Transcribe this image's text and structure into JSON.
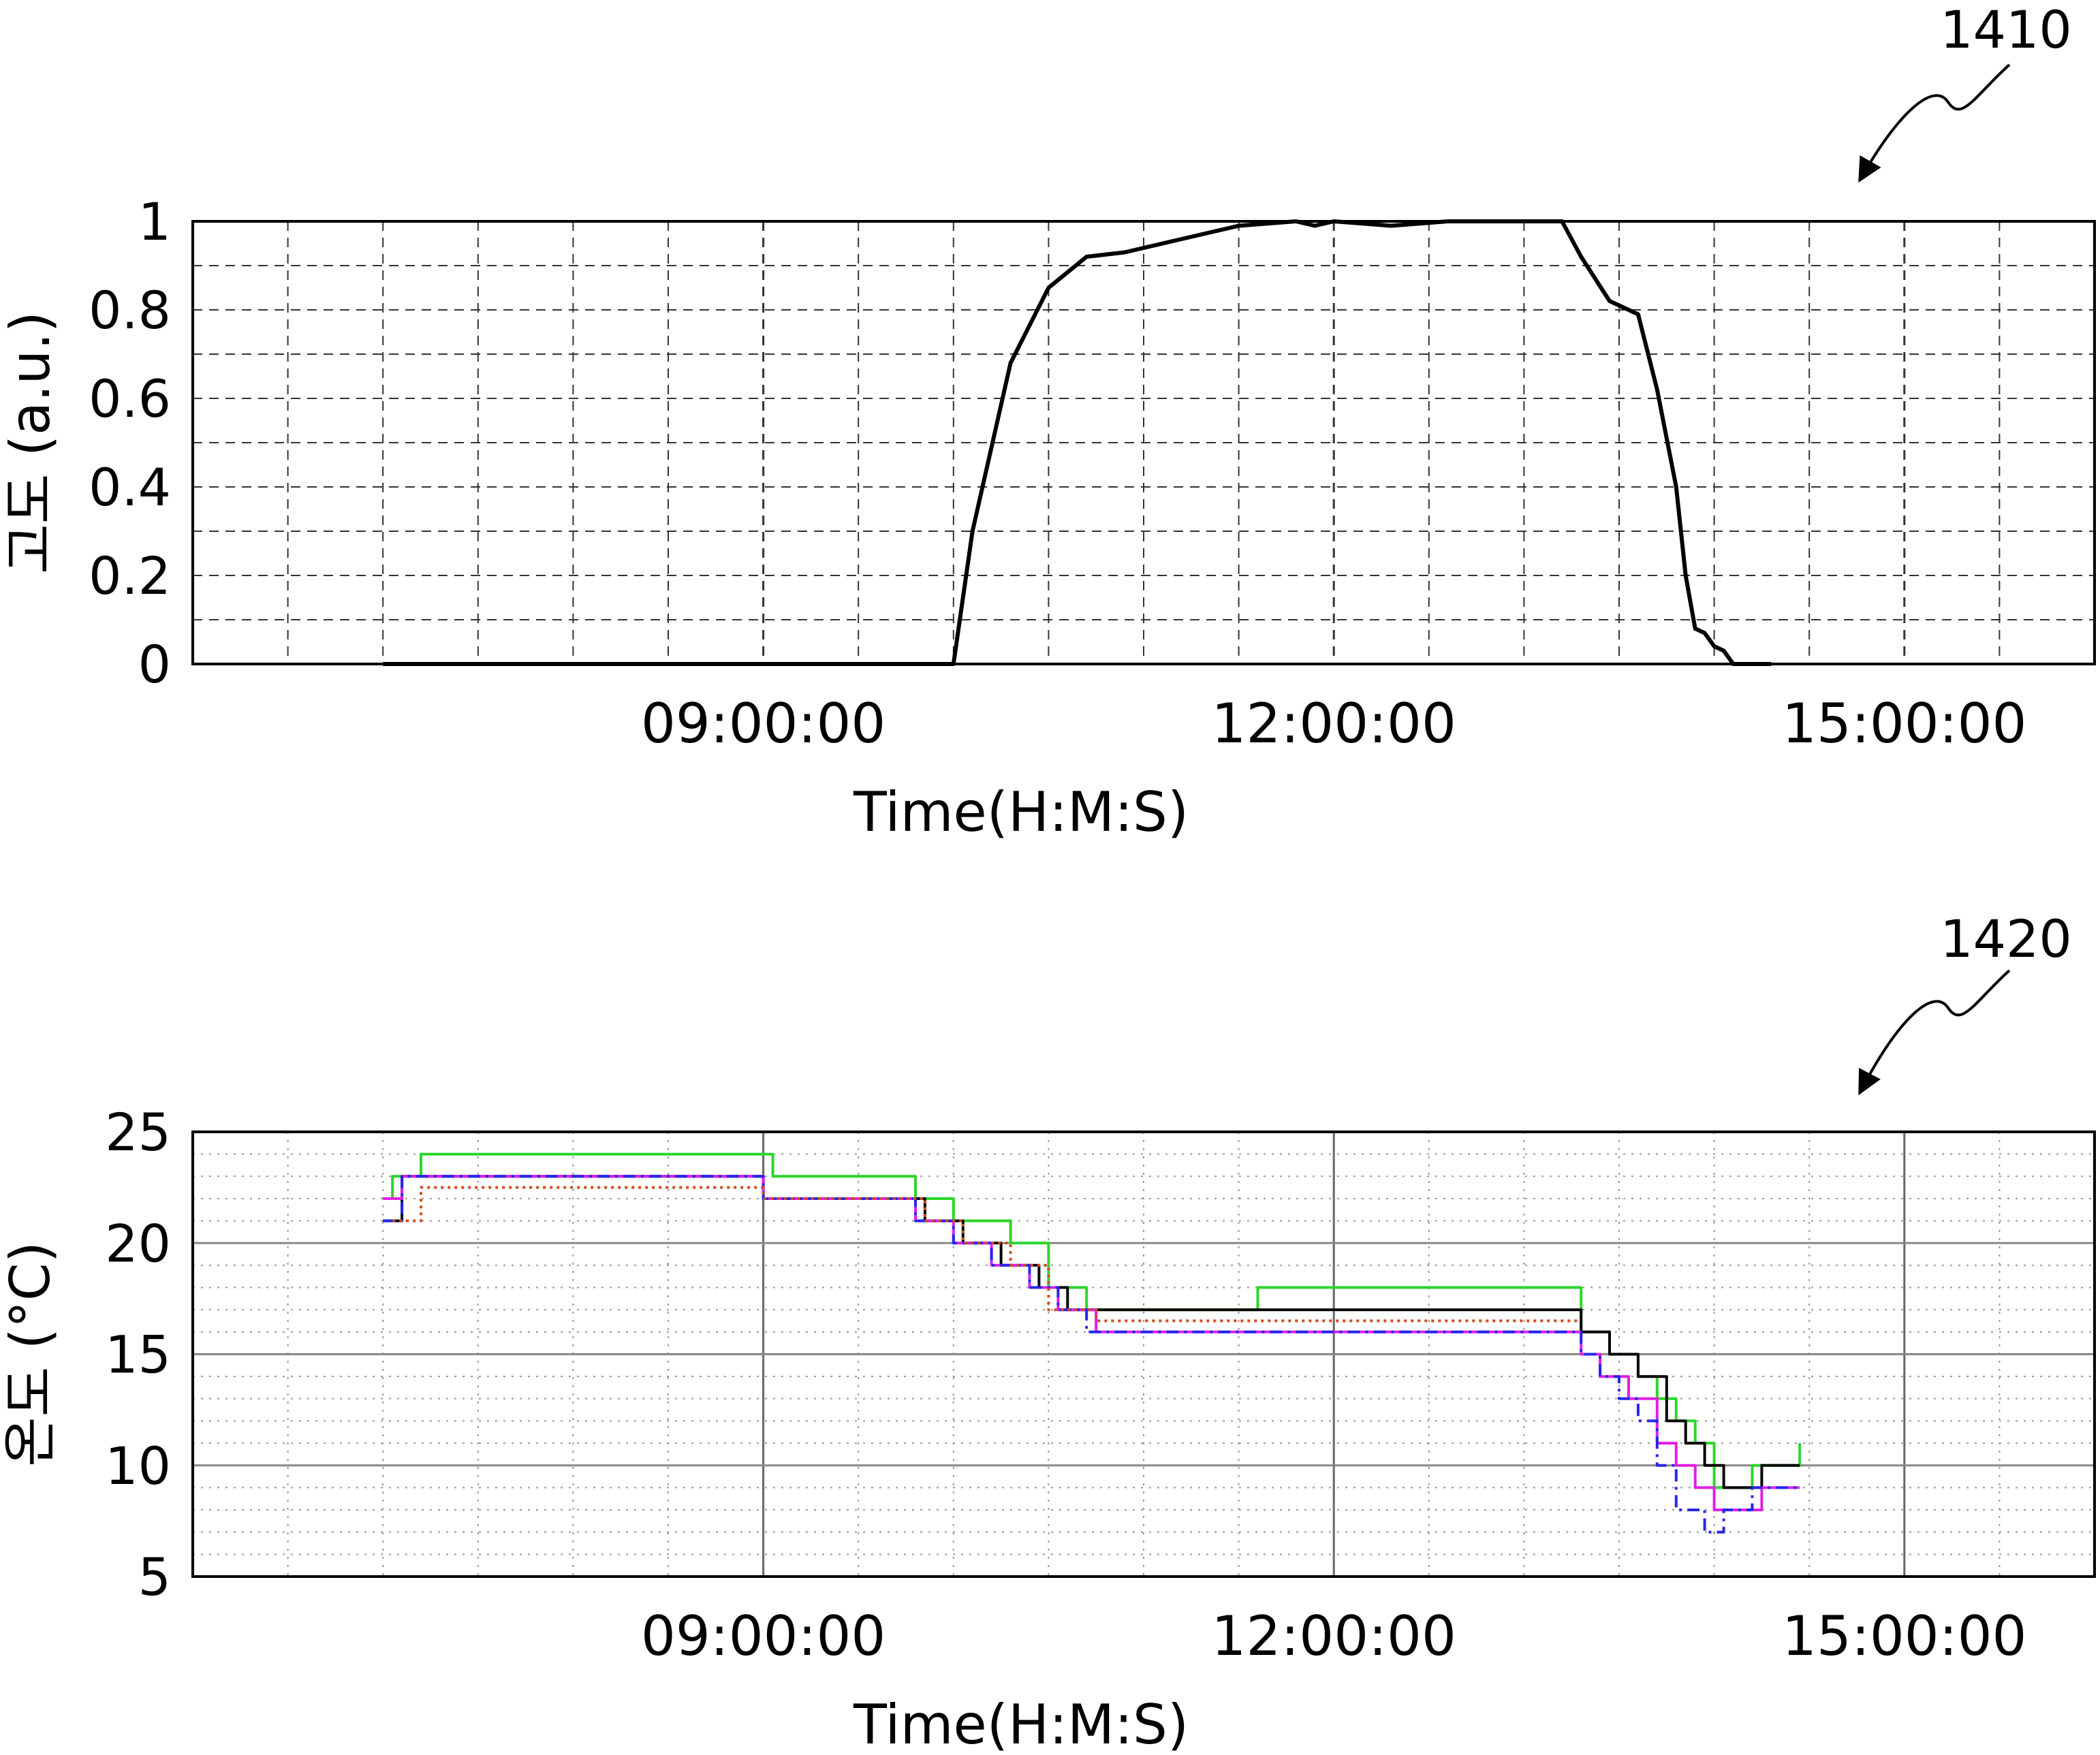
{
  "chart_data": [
    {
      "type": "line",
      "ref": "1410",
      "title": "",
      "xlabel": "Time(H:M:S)",
      "ylabel": "고도 (a.u.)",
      "xlim": [
        6.0,
        16.0
      ],
      "ylim": [
        0,
        1
      ],
      "yticks": [
        0,
        0.2,
        0.4,
        0.6,
        0.8,
        1
      ],
      "ytick_labels": [
        "0",
        "0.2",
        "0.4",
        "0.6",
        "0.8",
        "1"
      ],
      "xticks": [
        9,
        12,
        15
      ],
      "xtick_labels": [
        "09:00:00",
        "12:00:00",
        "15:00:00"
      ],
      "grid": "dashed",
      "series": [
        {
          "color": "#000000",
          "x": [
            7.0,
            9.0,
            10.0,
            10.1,
            10.3,
            10.5,
            10.7,
            10.9,
            11.2,
            11.5,
            11.8,
            11.9,
            12.0,
            12.3,
            12.6,
            12.9,
            13.2,
            13.3,
            13.45,
            13.55,
            13.6,
            13.7,
            13.8,
            13.85,
            13.9,
            13.95,
            14.0,
            14.05,
            14.1,
            14.3
          ],
          "y": [
            0,
            0,
            0,
            0.3,
            0.68,
            0.85,
            0.92,
            0.93,
            0.96,
            0.99,
            1.0,
            0.99,
            1.0,
            0.99,
            1.0,
            1.0,
            1.0,
            0.92,
            0.82,
            0.8,
            0.79,
            0.62,
            0.4,
            0.2,
            0.08,
            0.07,
            0.04,
            0.03,
            0.0,
            0.0
          ]
        }
      ]
    },
    {
      "type": "line",
      "ref": "1420",
      "title": "",
      "xlabel": "Time(H:M:S)",
      "ylabel": "온도 (°C)",
      "xlim": [
        6.0,
        16.0
      ],
      "ylim": [
        5,
        25
      ],
      "yticks": [
        5,
        10,
        15,
        20,
        25
      ],
      "ytick_labels": [
        "5",
        "10",
        "15",
        "20",
        "25"
      ],
      "xticks": [
        9,
        12,
        15
      ],
      "xtick_labels": [
        "09:00:00",
        "12:00:00",
        "15:00:00"
      ],
      "grid": "dotted",
      "series": [
        {
          "color": "#2bd62b",
          "x": [
            7.0,
            7.05,
            7.05,
            7.2,
            7.2,
            9.05,
            9.05,
            9.8,
            9.8,
            10.0,
            10.0,
            10.3,
            10.3,
            10.5,
            10.5,
            10.7,
            10.7,
            11.6,
            11.6,
            13.3,
            13.3,
            13.45,
            13.45,
            13.6,
            13.6,
            13.7,
            13.7,
            13.8,
            13.8,
            13.9,
            13.9,
            14.0,
            14.0,
            14.2,
            14.2,
            14.45,
            14.45
          ],
          "y": [
            22,
            22,
            23,
            23,
            24,
            24,
            23,
            23,
            22,
            22,
            21,
            21,
            20,
            20,
            18,
            18,
            17,
            17,
            18,
            18,
            16,
            16,
            15,
            15,
            14,
            14,
            13,
            13,
            12,
            12,
            11,
            11,
            9,
            9,
            10,
            10,
            11
          ]
        },
        {
          "color": "#000000",
          "x": [
            7.0,
            7.1,
            7.1,
            9.0,
            9.0,
            9.85,
            9.85,
            10.05,
            10.05,
            10.25,
            10.25,
            10.45,
            10.45,
            10.6,
            10.6,
            10.75,
            10.75,
            13.3,
            13.3,
            13.45,
            13.45,
            13.6,
            13.6,
            13.75,
            13.75,
            13.85,
            13.85,
            13.95,
            13.95,
            14.05,
            14.05,
            14.25,
            14.25,
            14.45
          ],
          "y": [
            21,
            21,
            23,
            23,
            22,
            22,
            21,
            21,
            20,
            20,
            19,
            19,
            18,
            18,
            17,
            17,
            17,
            17,
            16,
            16,
            15,
            15,
            14,
            14,
            12,
            12,
            11,
            11,
            10,
            10,
            9,
            9,
            10,
            10
          ]
        },
        {
          "color": "#e21ee2",
          "x": [
            7.0,
            7.1,
            7.1,
            9.0,
            9.0,
            9.8,
            9.8,
            10.0,
            10.0,
            10.2,
            10.2,
            10.4,
            10.4,
            10.55,
            10.55,
            10.75,
            10.75,
            13.3,
            13.3,
            13.4,
            13.4,
            13.55,
            13.55,
            13.7,
            13.7,
            13.8,
            13.8,
            13.9,
            13.9,
            14.0,
            14.0,
            14.25,
            14.25,
            14.45
          ],
          "y": [
            22,
            22,
            23,
            23,
            22,
            22,
            21,
            21,
            20,
            20,
            19,
            19,
            18,
            18,
            17,
            17,
            16,
            16,
            15,
            15,
            14,
            14,
            13,
            13,
            11,
            11,
            10,
            10,
            9,
            9,
            8,
            8,
            9,
            9
          ]
        },
        {
          "color": "#2626e8",
          "x": [
            7.0,
            7.1,
            7.1,
            9.0,
            9.0,
            9.8,
            9.8,
            10.0,
            10.0,
            10.2,
            10.2,
            10.4,
            10.4,
            10.55,
            10.55,
            10.7,
            10.7,
            13.3,
            13.3,
            13.4,
            13.4,
            13.5,
            13.5,
            13.6,
            13.6,
            13.7,
            13.7,
            13.8,
            13.8,
            13.95,
            13.95,
            14.05,
            14.05,
            14.2,
            14.2,
            14.45
          ],
          "y": [
            21,
            21,
            23,
            23,
            22,
            22,
            21,
            21,
            20,
            20,
            19,
            19,
            18,
            18,
            17,
            17,
            16,
            16,
            15,
            15,
            14,
            14,
            13,
            13,
            12,
            12,
            10,
            10,
            8,
            8,
            7,
            7,
            8,
            8,
            9,
            9
          ]
        },
        {
          "color": "#d24a1e",
          "x": [
            7.05,
            7.2,
            7.2,
            9.0,
            9.0,
            9.85,
            9.85,
            10.05,
            10.05,
            10.3,
            10.3,
            10.5,
            10.5,
            10.75,
            10.75,
            13.3
          ],
          "y": [
            21,
            21,
            22.5,
            22.5,
            22,
            22,
            21,
            21,
            20,
            20,
            19,
            19,
            17,
            17,
            16.5,
            16.5
          ]
        }
      ]
    }
  ]
}
